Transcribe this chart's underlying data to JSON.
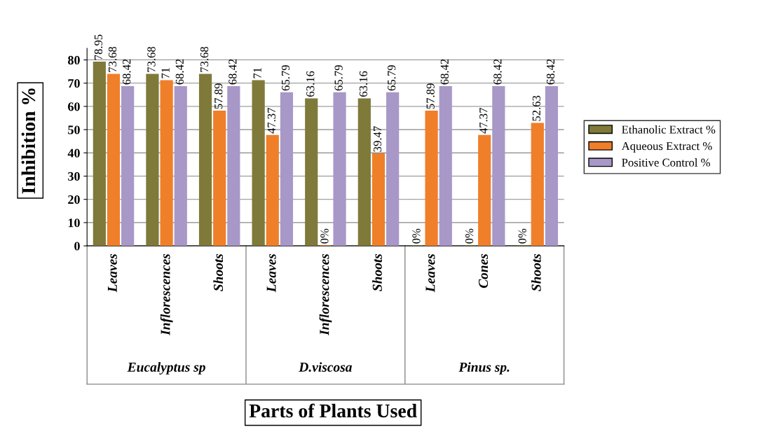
{
  "chart_data": {
    "type": "bar",
    "xlabel": "Parts of Plants Used",
    "ylabel": "Inhibition %",
    "categories": [
      "Leaves",
      "Inflorescences",
      "Shoots",
      "Leaves",
      "Inflorescences",
      "Shoots",
      "Leaves",
      "Cones",
      "Shoots"
    ],
    "series": [
      {
        "name": "Ethanolic Extract %",
        "color": "#7f7a3a",
        "values": [
          78.95,
          73.68,
          73.68,
          71,
          63.16,
          63.16,
          0,
          0,
          0
        ],
        "value_labels": [
          "78.95",
          "73.68",
          "73.68",
          "71",
          "63.16",
          "63.16",
          "0%",
          "0%",
          "0%"
        ]
      },
      {
        "name": "Aqueous Extract %",
        "color": "#f07f2a",
        "values": [
          73.68,
          71,
          57.89,
          47.37,
          0,
          39.47,
          57.89,
          47.37,
          52.63
        ],
        "value_labels": [
          "73.68",
          "71",
          "57.89",
          "47.37",
          "0%",
          "39.47",
          "57.89",
          "47.37",
          "52.63"
        ]
      },
      {
        "name": "Positive Control %",
        "color": "#a898c8",
        "values": [
          68.42,
          68.42,
          68.42,
          65.79,
          65.79,
          65.79,
          68.42,
          68.42,
          68.42
        ],
        "value_labels": [
          "68.42",
          "68.42",
          "68.42",
          "65.79",
          "65.79",
          "65.79",
          "68.42",
          "68.42",
          "68.42"
        ]
      }
    ],
    "annotations": [
      "Eucalyptus sp",
      "D.viscosa",
      "Pinus sp."
    ],
    "ylim": [
      0,
      85
    ],
    "yticks": [
      0,
      10,
      20,
      30,
      40,
      50,
      60,
      70,
      80
    ],
    "grid": "y",
    "legend": "right"
  }
}
